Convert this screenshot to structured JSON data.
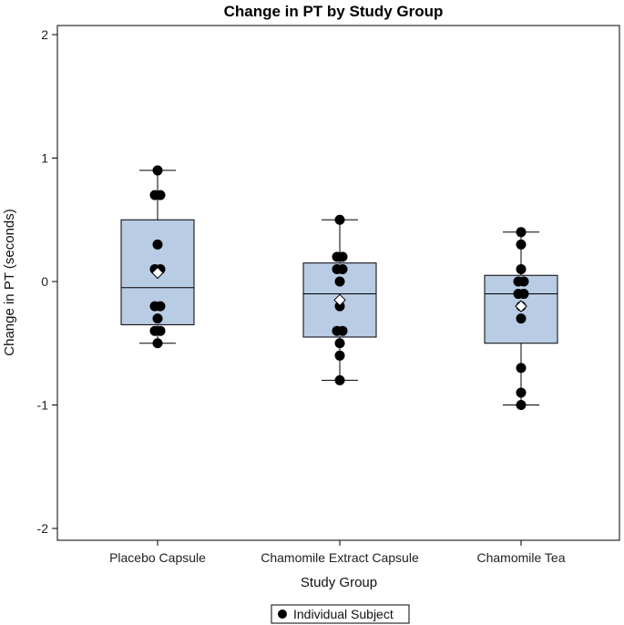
{
  "chart_data": {
    "type": "box",
    "title": "Change in PT by Study Group",
    "xlabel": "Study Group",
    "ylabel": "Change in PT (seconds)",
    "ylim": [
      -2.2,
      2.2
    ],
    "yticks": [
      "-2",
      "-1",
      "0",
      "1",
      "2"
    ],
    "ytick_values": [
      -2,
      -1,
      0,
      1,
      2
    ],
    "categories": [
      "Placebo Capsule",
      "Chamomile Extract Capsule",
      "Chamomile Tea"
    ],
    "box_color": "#b8cce4",
    "boxes": [
      {
        "group": "Placebo Capsule",
        "whisker_low": -0.5,
        "q1": -0.35,
        "median": -0.05,
        "q3": 0.5,
        "whisker_high": 0.9,
        "mean": 0.07,
        "points": [
          0.9,
          0.7,
          0.7,
          0.3,
          0.1,
          0.1,
          -0.2,
          -0.2,
          -0.3,
          -0.4,
          -0.4,
          -0.5
        ]
      },
      {
        "group": "Chamomile Extract Capsule",
        "whisker_low": -0.8,
        "q1": -0.45,
        "median": -0.1,
        "q3": 0.15,
        "whisker_high": 0.5,
        "mean": -0.15,
        "points": [
          0.5,
          0.2,
          0.2,
          0.1,
          0.1,
          0.0,
          -0.2,
          -0.4,
          -0.4,
          -0.5,
          -0.6,
          -0.8
        ]
      },
      {
        "group": "Chamomile Tea",
        "whisker_low": -1.0,
        "q1": -0.5,
        "median": -0.1,
        "q3": 0.05,
        "whisker_high": 0.4,
        "mean": -0.2,
        "points": [
          0.4,
          0.3,
          0.1,
          0.0,
          0.0,
          -0.1,
          -0.1,
          -0.2,
          -0.3,
          -0.7,
          -0.9,
          -1.0
        ]
      }
    ],
    "legend": {
      "label": "Individual Subject",
      "position": "bottom-center"
    }
  }
}
